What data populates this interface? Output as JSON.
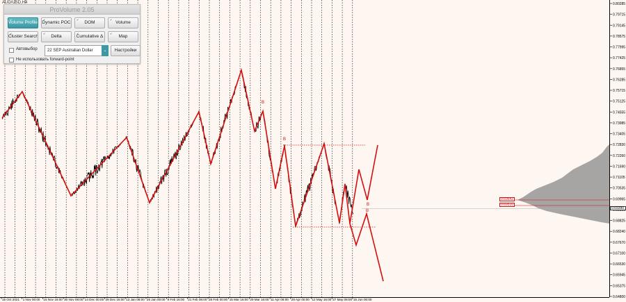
{
  "chart": {
    "symbol": "AUD/USD,H4",
    "x_axis_labels": [
      "15 Oct 2021",
      "1 Nov 00:00",
      "15 Nov 16:00",
      "30 Nov 08:00",
      "14 Dec 00:00",
      "29 Dec 16:00",
      "13 Jan 08:00",
      "26 Jan 00:00",
      "9 Feb 16:00",
      "21 Feb 08:00",
      "28 Feb 00:00",
      "15 Mar 16:00",
      "29 Mar 16:00",
      "11 Apr 08:00",
      "28 Apr 00:00",
      "12 May 16:00",
      "27 May 08:00",
      "15 Jun 00:00"
    ],
    "y_axis_labels": [
      "0.80285",
      "0.79715",
      "0.79145",
      "0.78575",
      "0.77995",
      "0.77425",
      "0.76855",
      "0.76285",
      "0.75715",
      "0.75125",
      "0.74555",
      "0.73985",
      "0.73405",
      "0.72830",
      "0.72260",
      "0.71690",
      "0.71105",
      "0.70535",
      "0.69965",
      "0.69390",
      "0.68825",
      "0.68240",
      "0.67670",
      "0.67100",
      "0.66530",
      "0.65945",
      "0.65375",
      "0.64800"
    ],
    "current_price": "0.69390",
    "level_labels": [
      "0.69642",
      "0.69510"
    ],
    "pattern_labels": [
      "B",
      "B",
      "B",
      "B"
    ],
    "colors": {
      "background": "#fdf6f1",
      "candles": "#000000",
      "zigzag": "#d60e0e",
      "grid": "#000000",
      "profile": "#8a8a8a"
    }
  },
  "panel": {
    "title": "ProVolume 2.05",
    "buttons": [
      {
        "label": "Volume Profile",
        "active": true
      },
      {
        "label": "Dynamic POC",
        "active": false
      },
      {
        "label": "DOM",
        "active": false
      },
      {
        "label": "Volume",
        "active": false
      },
      {
        "label": "Cluster Search",
        "active": false
      },
      {
        "label": "Delta",
        "active": false
      },
      {
        "label": "Cumulative Δ",
        "active": false
      },
      {
        "label": "Map",
        "active": false
      }
    ],
    "auto_label": "Автовыбор",
    "instrument_value": "22 SEP Australian Dollar",
    "settings_label": "Настройки",
    "forward_point_label": "Не использовать forward-point"
  }
}
